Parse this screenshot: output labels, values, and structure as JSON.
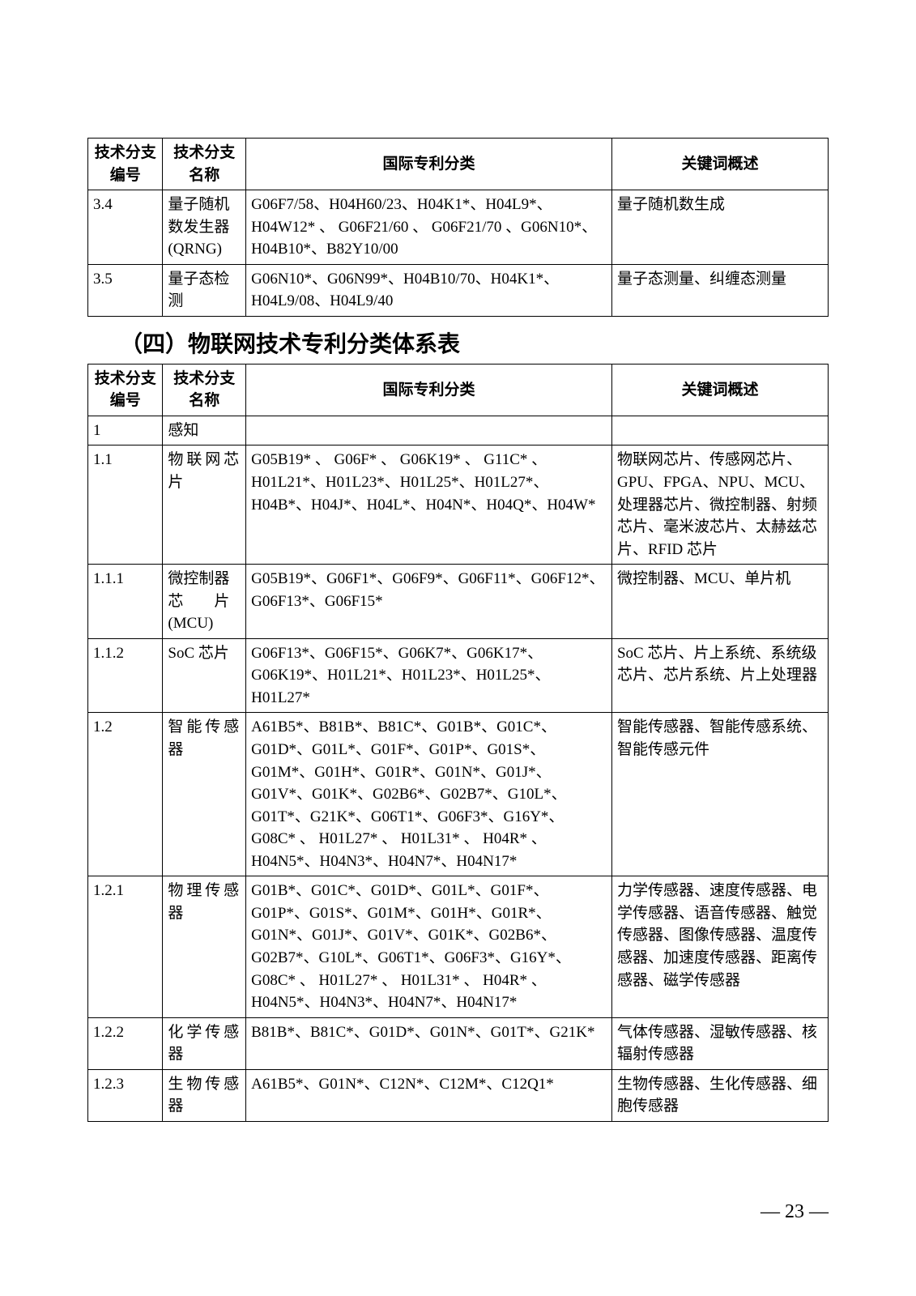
{
  "table1": {
    "headers": [
      "技术分支编号",
      "技术分支名称",
      "国际专利分类",
      "关键词概述"
    ],
    "rows": [
      {
        "num": "3.4",
        "name": "量子随机数发生器(QRNG)",
        "intl": "G06F7/58、H04H60/23、H04K1*、H04L9*、H04W12* 、 G06F21/60 、 G06F21/70 、G06N10*、H04B10*、B82Y10/00",
        "keyword": "量子随机数生成"
      },
      {
        "num": "3.5",
        "name": "量子态检测",
        "intl": "G06N10*、G06N99*、H04B10/70、H04K1*、H04L9/08、H04L9/40",
        "keyword": "量子态测量、纠缠态测量"
      }
    ]
  },
  "section_title": "（四）物联网技术专利分类体系表",
  "table2": {
    "headers": [
      "技术分支编号",
      "技术分支名称",
      "国际专利分类",
      "关键词概述"
    ],
    "rows": [
      {
        "num": "1",
        "name": "感知",
        "intl": "",
        "keyword": ""
      },
      {
        "num": "1.1",
        "name": "物联网芯片",
        "intl": "G05B19* 、 G06F* 、 G06K19* 、 G11C* 、H01L21*、H01L23*、H01L25*、H01L27*、H04B*、H04J*、H04L*、H04N*、H04Q*、H04W*",
        "keyword": "物联网芯片、传感网芯片、GPU、FPGA、NPU、MCU、处理器芯片、微控制器、射频芯片、毫米波芯片、太赫兹芯片、RFID 芯片"
      },
      {
        "num": "1.1.1",
        "name": "微控制器芯　　片(MCU)",
        "intl": "G05B19*、G06F1*、G06F9*、G06F11*、G06F12*、G06F13*、G06F15*",
        "keyword": "微控制器、MCU、单片机"
      },
      {
        "num": "1.1.2",
        "name": "SoC 芯片",
        "intl": "G06F13*、G06F15*、G06K7*、G06K17*、G06K19*、H01L21*、H01L23*、H01L25*、H01L27*",
        "keyword": "SoC 芯片、片上系统、系统级芯片、芯片系统、片上处理器"
      },
      {
        "num": "1.2",
        "name": "智能传感器",
        "intl": "A61B5*、B81B*、B81C*、G01B*、G01C*、G01D*、G01L*、G01F*、G01P*、G01S*、G01M*、G01H*、G01R*、G01N*、G01J*、G01V*、G01K*、G02B6*、G02B7*、G10L*、G01T*、G21K*、G06T1*、G06F3*、G16Y*、G08C* 、 H01L27* 、 H01L31* 、 H04R* 、H04N5*、H04N3*、H04N7*、H04N17*",
        "keyword": "智能传感器、智能传感系统、智能传感元件"
      },
      {
        "num": "1.2.1",
        "name": "物理传感器",
        "intl": "G01B*、G01C*、G01D*、G01L*、G01F*、G01P*、G01S*、G01M*、G01H*、G01R*、G01N*、G01J*、G01V*、G01K*、G02B6*、G02B7*、G10L*、G06T1*、G06F3*、G16Y*、G08C* 、 H01L27* 、 H01L31* 、 H04R* 、H04N5*、H04N3*、H04N7*、H04N17*",
        "keyword": "力学传感器、速度传感器、电学传感器、语音传感器、触觉传感器、图像传感器、温度传感器、加速度传感器、距离传感器、磁学传感器"
      },
      {
        "num": "1.2.2",
        "name": "化学传感器",
        "intl": "B81B*、B81C*、G01D*、G01N*、G01T*、G21K*",
        "keyword": "气体传感器、湿敏传感器、核辐射传感器"
      },
      {
        "num": "1.2.3",
        "name": "生物传感器",
        "intl": "A61B5*、G01N*、C12N*、C12M*、C12Q1*",
        "keyword": "生物传感器、生化传感器、细胞传感器"
      }
    ]
  },
  "page_number": "— 23 —"
}
